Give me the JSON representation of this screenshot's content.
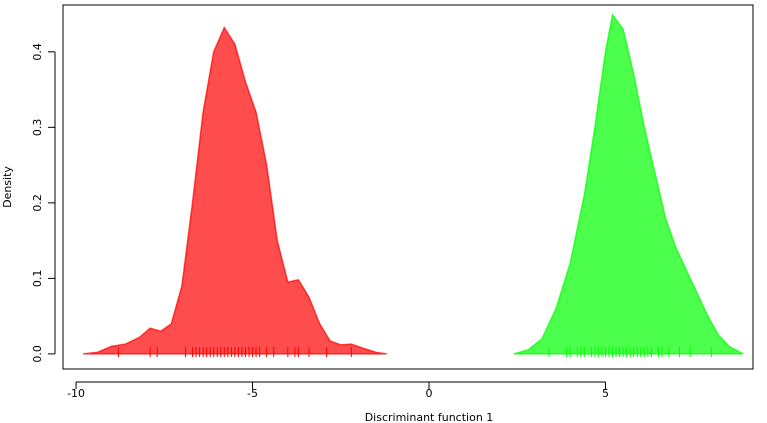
{
  "chart_data": {
    "type": "density",
    "x_label": "Discriminant function 1",
    "y_label": "Density",
    "xlim": [
      -10.37,
      9.18
    ],
    "ylim": [
      -0.02,
      0.462
    ],
    "xticks": [
      -10,
      -5,
      0,
      5
    ],
    "yticks": [
      {
        "value": 0,
        "label": "0.0"
      },
      0.1,
      0.2,
      0.3,
      0.4
    ],
    "fill_opacity": 0.7,
    "series": [
      {
        "color": "#ff0000",
        "x": [
          -9.8,
          -9.4,
          -9.0,
          -8.6,
          -8.2,
          -7.9,
          -7.6,
          -7.3,
          -7.0,
          -6.7,
          -6.4,
          -6.1,
          -5.8,
          -5.5,
          -5.2,
          -4.9,
          -4.6,
          -4.3,
          -4.0,
          -3.7,
          -3.4,
          -3.1,
          -2.8,
          -2.5,
          -2.2,
          -1.9,
          -1.5,
          -1.2
        ],
        "values": [
          0,
          0.002,
          0.01,
          0.013,
          0.022,
          0.034,
          0.03,
          0.04,
          0.09,
          0.2,
          0.32,
          0.4,
          0.432,
          0.41,
          0.36,
          0.32,
          0.25,
          0.15,
          0.095,
          0.098,
          0.075,
          0.04,
          0.017,
          0.012,
          0.013,
          0.008,
          0.002,
          0
        ],
        "rug": [
          -8.8,
          -7.9,
          -7.7,
          -6.9,
          -6.7,
          -6.6,
          -6.5,
          -6.4,
          -6.3,
          -6.2,
          -6.1,
          -6.0,
          -5.9,
          -5.8,
          -5.7,
          -5.6,
          -5.5,
          -5.4,
          -5.3,
          -5.2,
          -5.1,
          -5.0,
          -4.9,
          -4.8,
          -4.6,
          -4.4,
          -4.0,
          -3.8,
          -3.7,
          -3.4,
          -2.9,
          -2.2
        ]
      },
      {
        "color": "#00ff00",
        "x": [
          2.4,
          2.8,
          3.2,
          3.6,
          4.0,
          4.4,
          4.7,
          5.0,
          5.2,
          5.5,
          5.8,
          6.1,
          6.4,
          6.7,
          7.0,
          7.3,
          7.6,
          7.9,
          8.2,
          8.5,
          8.9
        ],
        "values": [
          0,
          0.005,
          0.02,
          0.06,
          0.12,
          0.21,
          0.3,
          0.4,
          0.449,
          0.43,
          0.37,
          0.3,
          0.24,
          0.18,
          0.14,
          0.11,
          0.08,
          0.05,
          0.025,
          0.01,
          0
        ],
        "rug": [
          3.4,
          3.9,
          4.0,
          4.2,
          4.3,
          4.4,
          4.6,
          4.7,
          4.8,
          4.9,
          5.0,
          5.1,
          5.2,
          5.3,
          5.4,
          5.5,
          5.6,
          5.7,
          5.8,
          5.9,
          6.0,
          6.1,
          6.2,
          6.3,
          6.5,
          6.6,
          6.8,
          7.1,
          7.4,
          8.0
        ]
      }
    ]
  }
}
